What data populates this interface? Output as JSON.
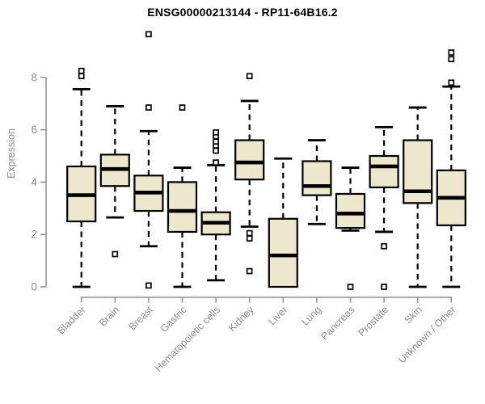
{
  "colors": {
    "background": "#ffffff",
    "box_fill": "#ede7cd",
    "box_stroke": "#000000",
    "median": "#000000",
    "outlier_fill": "#ffffff",
    "axis": "#8d8d8d",
    "title": "#000000"
  },
  "chart_data": {
    "type": "boxplot",
    "title": "ENSG00000213144 - RP11-64B16.2",
    "ylabel": "Expression",
    "xlabel": "",
    "ylim": [
      0,
      9.7
    ],
    "yticks": [
      0,
      2,
      4,
      6,
      8
    ],
    "grid": "off",
    "legend": "none",
    "categories": [
      "Bladder",
      "Brain",
      "Breast",
      "Gastric",
      "Hematopoietic cells",
      "Kidney",
      "Liver",
      "Lung",
      "Pancreas",
      "Prostate",
      "Skin",
      "Unknown / Other"
    ],
    "series": [
      {
        "name": "Bladder",
        "whisker_low": 0,
        "q1": 2.5,
        "median": 3.5,
        "q3": 4.6,
        "whisker_high": 7.55,
        "outliers": [
          8.05,
          8.25
        ]
      },
      {
        "name": "Brain",
        "whisker_low": 2.65,
        "q1": 3.85,
        "median": 4.5,
        "q3": 5.05,
        "whisker_high": 6.9,
        "outliers": [
          1.25
        ]
      },
      {
        "name": "Breast",
        "whisker_low": 1.55,
        "q1": 2.9,
        "median": 3.6,
        "q3": 4.25,
        "whisker_high": 5.95,
        "outliers": [
          0.05,
          6.85,
          9.65
        ]
      },
      {
        "name": "Gastric",
        "whisker_low": 0,
        "q1": 2.1,
        "median": 2.9,
        "q3": 4.0,
        "whisker_high": 4.55,
        "outliers": [
          6.85
        ]
      },
      {
        "name": "Hematopoietic cells",
        "whisker_low": 0.25,
        "q1": 2.0,
        "median": 2.45,
        "q3": 2.85,
        "whisker_high": 4.65,
        "outliers": [
          4.75,
          5.2,
          5.4,
          5.55,
          5.75,
          5.9
        ]
      },
      {
        "name": "Kidney",
        "whisker_low": 2.3,
        "q1": 4.1,
        "median": 4.75,
        "q3": 5.6,
        "whisker_high": 7.1,
        "outliers": [
          0.6,
          1.85,
          2.05,
          8.05
        ]
      },
      {
        "name": "Liver",
        "whisker_low": 0,
        "q1": 0,
        "median": 1.2,
        "q3": 2.6,
        "whisker_high": 4.9,
        "outliers": []
      },
      {
        "name": "Lung",
        "whisker_low": 2.4,
        "q1": 3.5,
        "median": 3.85,
        "q3": 4.8,
        "whisker_high": 5.6,
        "outliers": []
      },
      {
        "name": "Pancreas",
        "whisker_low": 2.15,
        "q1": 2.25,
        "median": 2.8,
        "q3": 3.55,
        "whisker_high": 4.55,
        "outliers": [
          0
        ]
      },
      {
        "name": "Prostate",
        "whisker_low": 2.1,
        "q1": 3.8,
        "median": 4.6,
        "q3": 5.0,
        "whisker_high": 6.1,
        "outliers": [
          0,
          1.55
        ]
      },
      {
        "name": "Skin",
        "whisker_low": 0,
        "q1": 3.2,
        "median": 3.65,
        "q3": 5.6,
        "whisker_high": 6.85,
        "outliers": []
      },
      {
        "name": "Unknown / Other",
        "whisker_low": 0,
        "q1": 2.35,
        "median": 3.4,
        "q3": 4.45,
        "whisker_high": 7.65,
        "outliers": [
          7.8,
          8.7,
          8.95
        ]
      }
    ]
  }
}
